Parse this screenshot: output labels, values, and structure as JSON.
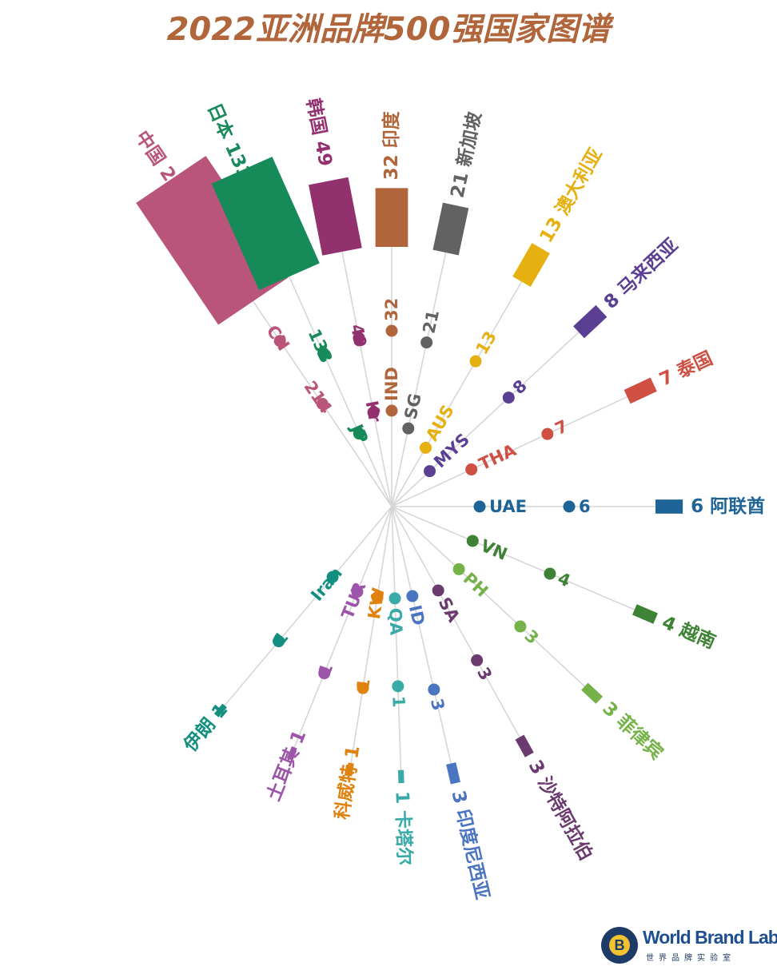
{
  "chart_data": {
    "type": "radial-bar",
    "title": "2022亚洲品牌500强国家图谱",
    "categories": [
      {
        "code": "CN",
        "name": "中国",
        "value": 214,
        "color": "#b9557a"
      },
      {
        "code": "JP",
        "name": "日本",
        "value": 133,
        "color": "#178a5a"
      },
      {
        "code": "Kr",
        "name": "韩国",
        "value": 49,
        "color": "#93316f"
      },
      {
        "code": "IND",
        "name": "印度",
        "value": 32,
        "color": "#b0653a"
      },
      {
        "code": "SG",
        "name": "新加坡",
        "value": 21,
        "color": "#626262"
      },
      {
        "code": "AUS",
        "name": "澳大利亚",
        "value": 13,
        "color": "#e6b010"
      },
      {
        "code": "MYS",
        "name": "马来西亚",
        "value": 8,
        "color": "#5b3f93"
      },
      {
        "code": "THA",
        "name": "泰国",
        "value": 7,
        "color": "#cf4f43"
      },
      {
        "code": "UAE",
        "name": "阿联酋",
        "value": 6,
        "color": "#1f6496"
      },
      {
        "code": "VN",
        "name": "越南",
        "value": 4,
        "color": "#3e8236"
      },
      {
        "code": "PH",
        "name": "菲律宾",
        "value": 3,
        "color": "#75b24a"
      },
      {
        "code": "SA",
        "name": "沙特阿拉伯",
        "value": 3,
        "color": "#6b3a6e"
      },
      {
        "code": "ID",
        "name": "印度尼西亚",
        "value": 3,
        "color": "#4b75c1"
      },
      {
        "code": "QA",
        "name": "卡塔尔",
        "value": 1,
        "color": "#3aaaa8"
      },
      {
        "code": "KW",
        "name": "科威特",
        "value": 1,
        "color": "#e0820f"
      },
      {
        "code": "TUR",
        "name": "土耳其",
        "value": 1,
        "color": "#9c55a8"
      },
      {
        "code": "Iran",
        "name": "伊朗",
        "value": 1,
        "color": "#138f80"
      }
    ],
    "title_color": "#b0653a"
  },
  "brand": {
    "seal_letter": "B",
    "wordmark": "World Brand Lab",
    "subtitle": "世界品牌实验室",
    "color": "#1d4f91"
  }
}
